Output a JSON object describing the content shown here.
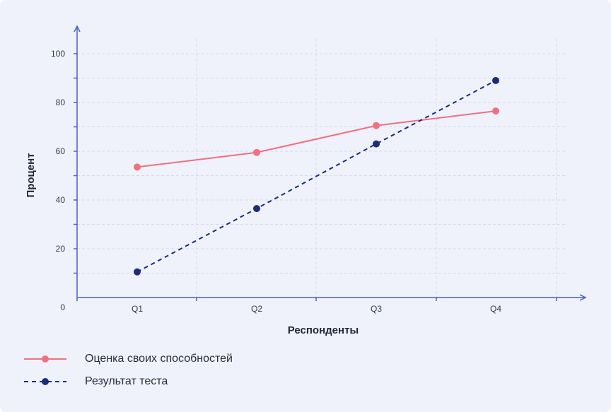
{
  "chart_data": {
    "type": "line",
    "title": "",
    "xlabel": "Респонденты",
    "ylabel": "Процент",
    "categories": [
      "Q1",
      "Q2",
      "Q3",
      "Q4"
    ],
    "ylim": [
      0,
      110
    ],
    "yticks": [
      100,
      80,
      60,
      40,
      20,
      0
    ],
    "grid": true,
    "legend_position": "bottom-left",
    "series": [
      {
        "name": "Оценка своих способностей",
        "values": [
          53.5,
          59.5,
          70.5,
          76.5
        ],
        "color": "#f07080",
        "line_style": "solid"
      },
      {
        "name": "Результат теста",
        "values": [
          10.5,
          36.5,
          63.0,
          89.0
        ],
        "color": "#1a2c7a",
        "line_style": "dashed"
      }
    ]
  },
  "colors": {
    "axis": "#4a5fd0",
    "grid": "#d7dbec",
    "background": "#eff1fb"
  }
}
